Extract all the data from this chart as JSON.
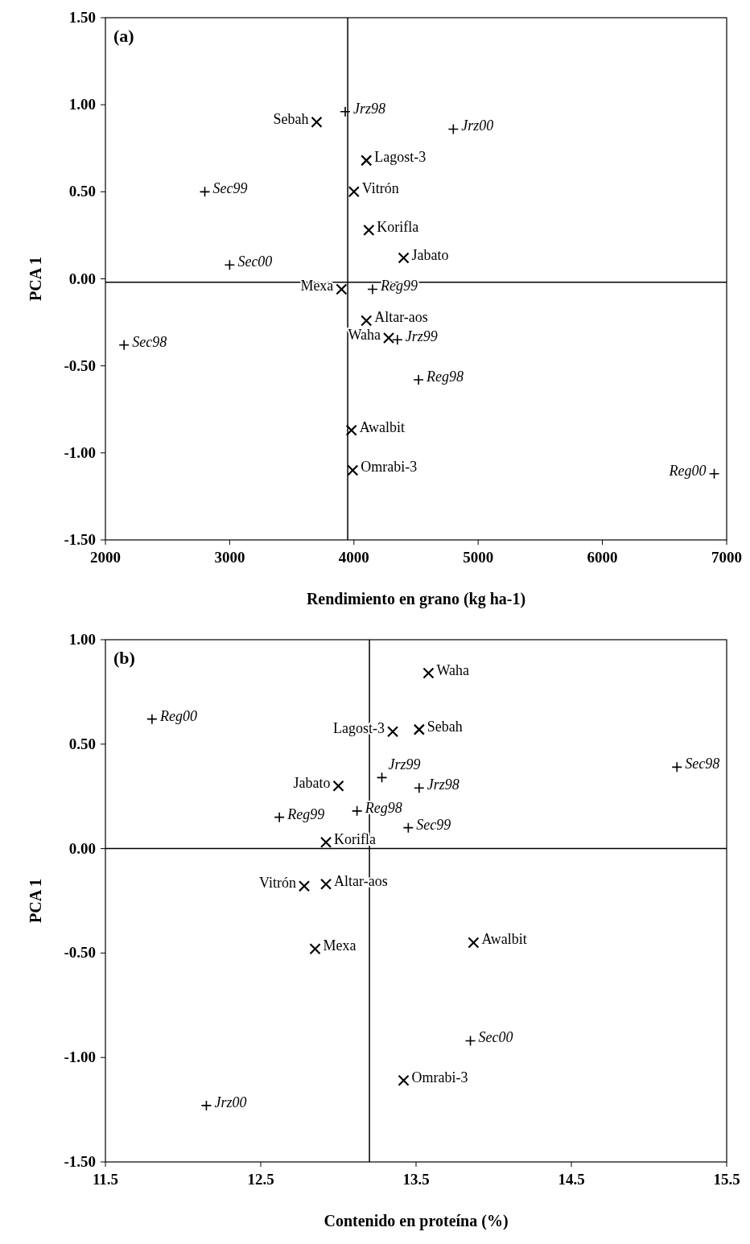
{
  "chart_data": [
    {
      "type": "scatter",
      "title": "(a)",
      "xlabel": "Rendimiento en grano (kg ha-1)",
      "ylabel": "PCA 1",
      "xlim": [
        2000,
        7000
      ],
      "xticks": [
        2000,
        3000,
        4000,
        5000,
        6000,
        7000
      ],
      "ylim": [
        -1.5,
        1.5
      ],
      "yticks": [
        {
          "value": -1.5,
          "label": "-1.50"
        },
        {
          "value": -1,
          "label": "-1.00"
        },
        {
          "value": -0.5,
          "label": "-0.50"
        },
        {
          "value": 0,
          "label": "0.00"
        },
        {
          "value": 0.5,
          "label": "0.50"
        },
        {
          "value": 1,
          "label": "1.00"
        },
        {
          "value": 1.5,
          "label": "1.50"
        }
      ],
      "grid": false,
      "ref_lines": [
        {
          "axis": "x",
          "value": 3950,
          "color": "#000000"
        },
        {
          "axis": "y",
          "value": -0.02,
          "color": "#000000"
        }
      ],
      "series": [
        {
          "color": "#000000",
          "marker": "cross",
          "x": [
            3700,
            4100,
            4000,
            4120,
            4400,
            3900,
            4100,
            4280,
            3980,
            3990
          ],
          "values": [
            0.9,
            0.68,
            0.5,
            0.28,
            0.12,
            -0.06,
            -0.24,
            -0.34,
            -0.87,
            -1.1
          ],
          "value_labels": [
            "Sebah",
            "Lagost-3",
            "Vitrón",
            "Korifla",
            "Jabato",
            "Mexa",
            "Altar-aos",
            "Waha",
            "Awalbit",
            "Omrabi-3"
          ]
        },
        {
          "color": "#000000",
          "marker": "plus",
          "x": [
            3930,
            4800,
            2800,
            3000,
            4150,
            4350,
            4520,
            2150,
            6900
          ],
          "values": [
            0.96,
            0.86,
            0.5,
            0.08,
            -0.06,
            -0.35,
            -0.58,
            -0.38,
            -1.12
          ],
          "value_labels": [
            "Jrz98",
            "Jrz00",
            "Sec99",
            "Sec00",
            "Reg99",
            "Jrz99",
            "Reg98",
            "Sec98",
            "Reg00"
          ]
        }
      ]
    },
    {
      "type": "scatter",
      "title": "(b)",
      "xlabel": "Contenido en proteína (%)",
      "ylabel": "PCA 1",
      "xlim": [
        11.5,
        15.5
      ],
      "xticks": [
        11.5,
        12.5,
        13.5,
        14.5,
        15.5
      ],
      "ylim": [
        -1.5,
        1
      ],
      "yticks": [
        {
          "value": -1.5,
          "label": "-1.50"
        },
        {
          "value": -1,
          "label": "-1.00"
        },
        {
          "value": -0.5,
          "label": "-0.50"
        },
        {
          "value": 0,
          "label": "0.00"
        },
        {
          "value": 0.5,
          "label": "0.50"
        },
        {
          "value": 1,
          "label": "1.00"
        }
      ],
      "grid": false,
      "ref_lines": [
        {
          "axis": "x",
          "value": 13.2,
          "color": "#000000"
        },
        {
          "axis": "y",
          "value": 0,
          "color": "#000000"
        }
      ],
      "series": [
        {
          "color": "#000000",
          "marker": "cross",
          "x": [
            13.58,
            13.35,
            13.52,
            13.0,
            12.92,
            12.78,
            12.92,
            12.85,
            13.87,
            13.42
          ],
          "values": [
            0.84,
            0.56,
            0.57,
            0.3,
            0.03,
            -0.18,
            -0.17,
            -0.48,
            -0.45,
            -1.11
          ],
          "value_labels": [
            "Waha",
            "Lagost-3",
            "Sebah",
            "Jabato",
            "Korifla",
            "Vitrón",
            "Altar-aos",
            "Mexa",
            "Awalbit",
            "Omrabi-3"
          ]
        },
        {
          "color": "#000000",
          "marker": "plus",
          "x": [
            11.8,
            15.18,
            13.28,
            13.52,
            13.12,
            12.62,
            13.45,
            13.85,
            12.15
          ],
          "values": [
            0.62,
            0.39,
            0.34,
            0.29,
            0.18,
            0.15,
            0.1,
            -0.92,
            -1.23
          ],
          "value_labels": [
            "Reg00",
            "Sec98",
            "Jrz99",
            "Jrz98",
            "Reg98",
            "Reg99",
            "Sec99",
            "Sec00",
            "Jrz00"
          ]
        }
      ]
    }
  ]
}
